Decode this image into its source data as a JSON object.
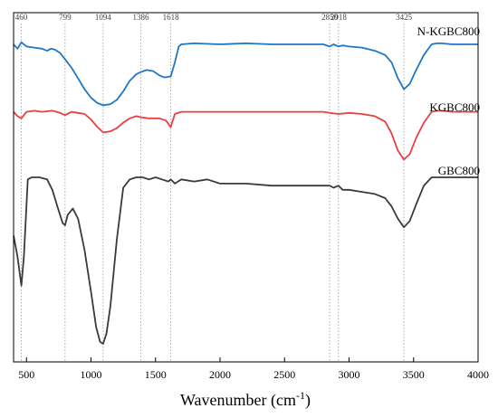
{
  "chart_data": {
    "type": "line",
    "xlabel": "Wavenumber (cm",
    "xlabel_sup": "-1",
    "xlabel_end": ")",
    "ylabel": "",
    "xlim": [
      400,
      4000
    ],
    "x_ticks": [
      500,
      1000,
      1500,
      2000,
      2500,
      3000,
      3500,
      4000
    ],
    "x_tick_labels": [
      "500",
      "1000",
      "1500",
      "2000",
      "2500",
      "3000",
      "3500",
      "4000"
    ],
    "grid": false,
    "peak_markers": [
      {
        "x": 460,
        "label": "460"
      },
      {
        "x": 799,
        "label": "799"
      },
      {
        "x": 1094,
        "label": "1094"
      },
      {
        "x": 1386,
        "label": "1386"
      },
      {
        "x": 1618,
        "label": "1618"
      },
      {
        "x": 2850,
        "label": "2850"
      },
      {
        "x": 2918,
        "label": "2918"
      },
      {
        "x": 3425,
        "label": "3425"
      }
    ],
    "series": [
      {
        "name": "N-KGBC800",
        "color": "#1f77c4",
        "x": [
          400,
          430,
          460,
          500,
          560,
          620,
          660,
          690,
          720,
          760,
          799,
          850,
          900,
          950,
          1000,
          1050,
          1094,
          1150,
          1200,
          1250,
          1300,
          1350,
          1386,
          1430,
          1480,
          1530,
          1570,
          1618,
          1650,
          1680,
          1700,
          1800,
          2000,
          2200,
          2400,
          2600,
          2800,
          2850,
          2880,
          2918,
          2950,
          3000,
          3100,
          3200,
          3280,
          3330,
          3380,
          3425,
          3470,
          3520,
          3580,
          3640,
          3680,
          3720,
          3800,
          3900,
          4000
        ],
        "y": [
          0.72,
          0.68,
          0.74,
          0.7,
          0.69,
          0.68,
          0.66,
          0.68,
          0.67,
          0.64,
          0.58,
          0.5,
          0.4,
          0.3,
          0.22,
          0.17,
          0.15,
          0.16,
          0.2,
          0.28,
          0.38,
          0.44,
          0.46,
          0.48,
          0.47,
          0.43,
          0.41,
          0.42,
          0.55,
          0.7,
          0.72,
          0.73,
          0.72,
          0.73,
          0.72,
          0.72,
          0.72,
          0.7,
          0.72,
          0.7,
          0.71,
          0.7,
          0.69,
          0.66,
          0.62,
          0.55,
          0.4,
          0.3,
          0.35,
          0.48,
          0.62,
          0.72,
          0.73,
          0.73,
          0.72,
          0.72,
          0.72
        ]
      },
      {
        "name": "KGBC800",
        "color": "#e8403f",
        "x": [
          400,
          430,
          460,
          500,
          560,
          620,
          700,
          760,
          799,
          850,
          900,
          950,
          1000,
          1050,
          1094,
          1150,
          1200,
          1250,
          1300,
          1350,
          1386,
          1450,
          1530,
          1580,
          1618,
          1650,
          1700,
          1800,
          2000,
          2200,
          2400,
          2600,
          2800,
          2850,
          2918,
          3000,
          3100,
          3200,
          3280,
          3330,
          3380,
          3425,
          3470,
          3520,
          3580,
          3640,
          3680,
          3720,
          3800,
          3900,
          4000
        ],
        "y": [
          0.72,
          0.68,
          0.66,
          0.72,
          0.73,
          0.72,
          0.73,
          0.71,
          0.69,
          0.72,
          0.71,
          0.7,
          0.65,
          0.58,
          0.53,
          0.54,
          0.57,
          0.62,
          0.66,
          0.68,
          0.67,
          0.66,
          0.66,
          0.64,
          0.58,
          0.7,
          0.72,
          0.72,
          0.72,
          0.72,
          0.72,
          0.72,
          0.72,
          0.71,
          0.7,
          0.71,
          0.7,
          0.68,
          0.63,
          0.52,
          0.36,
          0.28,
          0.33,
          0.48,
          0.62,
          0.72,
          0.73,
          0.73,
          0.72,
          0.72,
          0.72
        ]
      },
      {
        "name": "GBC800",
        "color": "#3a3a3a",
        "x": [
          400,
          430,
          460,
          480,
          510,
          540,
          600,
          660,
          700,
          740,
          780,
          799,
          820,
          860,
          900,
          950,
          1000,
          1040,
          1070,
          1094,
          1120,
          1150,
          1200,
          1250,
          1300,
          1350,
          1400,
          1450,
          1500,
          1550,
          1600,
          1618,
          1650,
          1700,
          1800,
          1900,
          2000,
          2200,
          2400,
          2600,
          2800,
          2850,
          2880,
          2918,
          2950,
          3000,
          3100,
          3200,
          3280,
          3330,
          3380,
          3425,
          3470,
          3520,
          3580,
          3640,
          3680,
          3720,
          3800,
          3900,
          4000
        ],
        "y": [
          0.52,
          0.42,
          0.28,
          0.42,
          0.79,
          0.8,
          0.8,
          0.79,
          0.74,
          0.66,
          0.58,
          0.57,
          0.62,
          0.65,
          0.6,
          0.45,
          0.25,
          0.08,
          0.01,
          0.0,
          0.05,
          0.18,
          0.5,
          0.75,
          0.79,
          0.8,
          0.8,
          0.79,
          0.8,
          0.79,
          0.78,
          0.79,
          0.77,
          0.79,
          0.78,
          0.79,
          0.77,
          0.77,
          0.76,
          0.76,
          0.76,
          0.76,
          0.75,
          0.76,
          0.74,
          0.74,
          0.73,
          0.72,
          0.7,
          0.66,
          0.6,
          0.56,
          0.59,
          0.67,
          0.76,
          0.8,
          0.8,
          0.8,
          0.8,
          0.8,
          0.8
        ]
      }
    ]
  }
}
